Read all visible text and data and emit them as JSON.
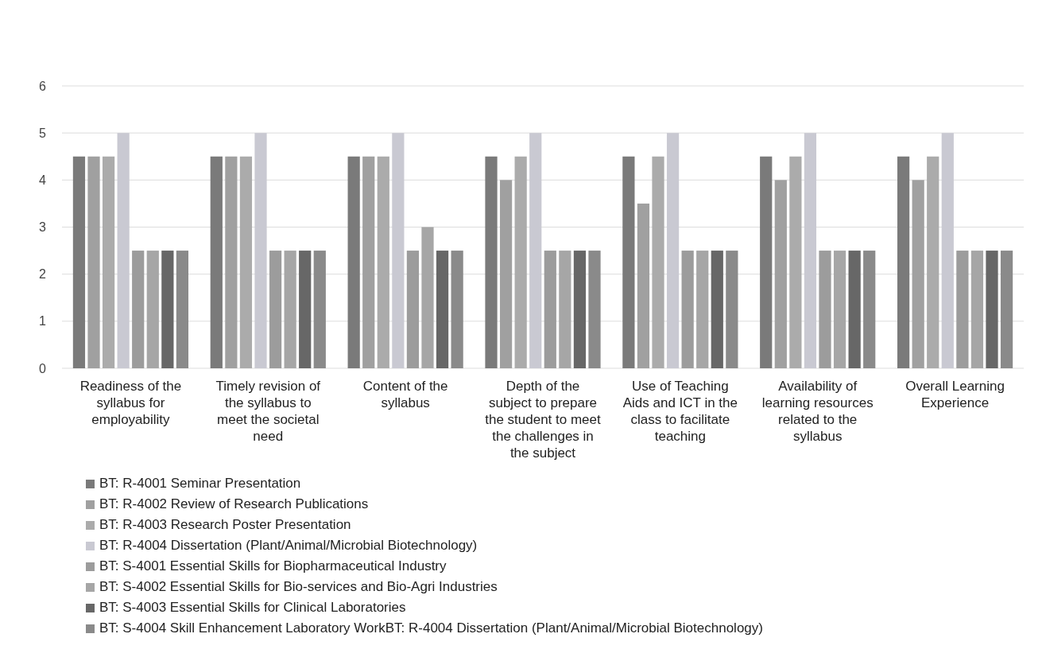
{
  "chart_data": {
    "type": "bar",
    "categories": [
      "Readiness of the syllabus for employability",
      "Timely revision of the syllabus to meet the societal need",
      "Content of the syllabus",
      "Depth of the subject to prepare the student to meet the challenges in the subject",
      "Use of Teaching Aids and ICT in the class to facilitate teaching",
      "Availability of learning resources related to the syllabus",
      "Overall Learning Experience"
    ],
    "series": [
      {
        "name": "BT: R-4001 Seminar Presentation",
        "color": "#7a7a7a",
        "values": [
          4.5,
          4.5,
          4.5,
          4.5,
          4.5,
          4.5,
          4.5
        ]
      },
      {
        "name": "BT: R-4002 Review of Research Publications",
        "color": "#a0a0a0",
        "values": [
          4.5,
          4.5,
          4.5,
          4.0,
          3.5,
          4.0,
          4.0
        ]
      },
      {
        "name": "BT: R-4003 Research Poster Presentation",
        "color": "#ababab",
        "values": [
          4.5,
          4.5,
          4.5,
          4.5,
          4.5,
          4.5,
          4.5
        ]
      },
      {
        "name": "BT: R-4004 Dissertation (Plant/Animal/Microbial Biotechnology)",
        "color": "#c9c9d2",
        "values": [
          5.0,
          5.0,
          5.0,
          5.0,
          5.0,
          5.0,
          5.0
        ]
      },
      {
        "name": "BT: S-4001 Essential Skills for Biopharmaceutical Industry",
        "color": "#9c9c9c",
        "values": [
          2.5,
          2.5,
          2.5,
          2.5,
          2.5,
          2.5,
          2.5
        ]
      },
      {
        "name": "BT: S-4002 Essential Skills for Bio-services and Bio-Agri Industries",
        "color": "#a6a6a6",
        "values": [
          2.5,
          2.5,
          3.0,
          2.5,
          2.5,
          2.5,
          2.5
        ]
      },
      {
        "name": "BT: S-4003 Essential Skills for Clinical Laboratories",
        "color": "#676767",
        "values": [
          2.5,
          2.5,
          2.5,
          2.5,
          2.5,
          2.5,
          2.5
        ]
      },
      {
        "name": "BT: S-4004 Skill Enhancement Laboratory WorkBT: R-4004 Dissertation (Plant/Animal/Microbial Biotechnology)",
        "color": "#8a8a8a",
        "values": [
          2.5,
          2.5,
          2.5,
          2.5,
          2.5,
          2.5,
          2.5
        ]
      }
    ],
    "ylim": [
      0,
      6
    ],
    "yticks": [
      0,
      1,
      2,
      3,
      4,
      5,
      6
    ],
    "grid": "y",
    "legend": "bottom"
  }
}
